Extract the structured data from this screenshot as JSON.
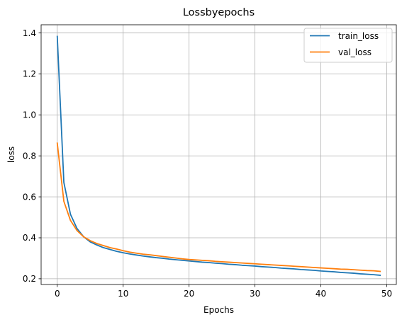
{
  "chart_data": {
    "type": "line",
    "title": "Lossbyepochs",
    "xlabel": "Epochs",
    "ylabel": "loss",
    "xlim": [
      -2.45,
      51.45
    ],
    "ylim": [
      0.172,
      1.44
    ],
    "xticks": [
      0,
      10,
      20,
      30,
      40,
      50
    ],
    "yticks": [
      0.2,
      0.4,
      0.6,
      0.8,
      1.0,
      1.2,
      1.4
    ],
    "grid": true,
    "legend_position": "top-right",
    "x": [
      0,
      1,
      2,
      3,
      4,
      5,
      6,
      7,
      8,
      9,
      10,
      11,
      12,
      13,
      14,
      15,
      16,
      17,
      18,
      19,
      20,
      21,
      22,
      23,
      24,
      25,
      26,
      27,
      28,
      29,
      30,
      31,
      32,
      33,
      34,
      35,
      36,
      37,
      38,
      39,
      40,
      41,
      42,
      43,
      44,
      45,
      46,
      47,
      48,
      49
    ],
    "series": [
      {
        "name": "train_loss",
        "color": "#1f77b4",
        "values": [
          1.383,
          0.67,
          0.515,
          0.445,
          0.405,
          0.38,
          0.365,
          0.352,
          0.343,
          0.334,
          0.327,
          0.321,
          0.316,
          0.311,
          0.307,
          0.303,
          0.3,
          0.296,
          0.293,
          0.29,
          0.287,
          0.284,
          0.281,
          0.279,
          0.276,
          0.274,
          0.271,
          0.269,
          0.266,
          0.264,
          0.262,
          0.259,
          0.257,
          0.255,
          0.252,
          0.25,
          0.248,
          0.245,
          0.243,
          0.241,
          0.238,
          0.236,
          0.234,
          0.231,
          0.229,
          0.227,
          0.224,
          0.222,
          0.22,
          0.217
        ]
      },
      {
        "name": "val_loss",
        "color": "#ff7f0e",
        "values": [
          0.862,
          0.578,
          0.485,
          0.435,
          0.405,
          0.386,
          0.372,
          0.362,
          0.352,
          0.345,
          0.337,
          0.33,
          0.325,
          0.32,
          0.317,
          0.313,
          0.309,
          0.305,
          0.301,
          0.297,
          0.294,
          0.292,
          0.29,
          0.288,
          0.285,
          0.283,
          0.281,
          0.279,
          0.277,
          0.275,
          0.273,
          0.271,
          0.269,
          0.267,
          0.265,
          0.263,
          0.261,
          0.259,
          0.257,
          0.255,
          0.253,
          0.251,
          0.249,
          0.247,
          0.246,
          0.244,
          0.242,
          0.24,
          0.239,
          0.236
        ]
      }
    ]
  }
}
